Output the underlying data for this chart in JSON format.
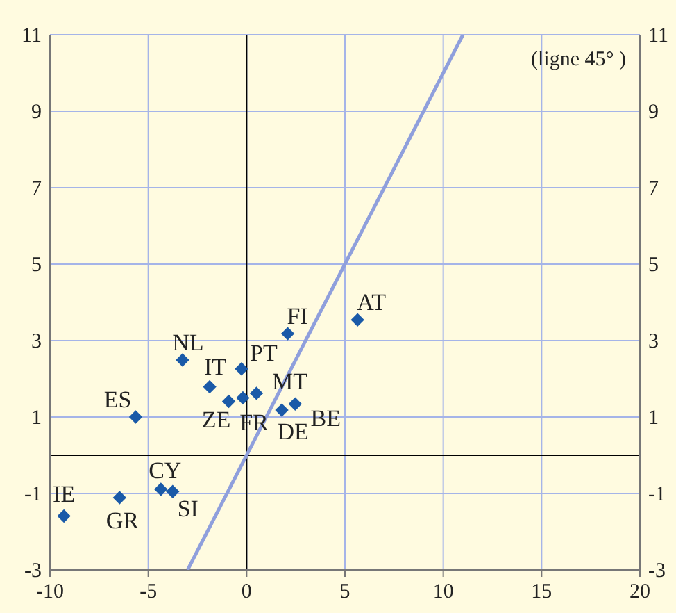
{
  "chart_data": {
    "type": "scatter",
    "xlim": [
      -10,
      20
    ],
    "xticks": [
      -10,
      -5,
      0,
      5,
      10,
      15,
      20
    ],
    "ylim": [
      -3,
      11
    ],
    "yticks": [
      -3,
      -1,
      1,
      3,
      5,
      7,
      9,
      11
    ],
    "y2lim": [
      -3,
      11
    ],
    "y2ticks": [
      -3,
      -1,
      1,
      3,
      5,
      7,
      9,
      11
    ],
    "grid": true,
    "marker": "diamond",
    "series": [
      {
        "color": "#1a5aa8",
        "x": [
          -9.29,
          -6.46,
          -4.36,
          -3.76,
          -5.64,
          -3.26,
          -1.88,
          -0.91,
          -0.19,
          -0.26,
          0.5,
          1.79,
          2.47,
          2.09,
          5.64
        ],
        "values": [
          -1.59,
          -1.11,
          -0.89,
          -0.95,
          1.0,
          2.49,
          1.79,
          1.41,
          1.5,
          2.26,
          1.62,
          1.18,
          1.34,
          3.18,
          3.54
        ]
      },
      {
        "type": "line",
        "color": "#8f9fdc",
        "x": [
          -3,
          11
        ],
        "values": [
          -3,
          11
        ],
        "marker": "none"
      }
    ],
    "annotations": [
      {
        "text": "IE",
        "x": -9.29,
        "y": -1.59
      },
      {
        "text": "GR",
        "x": -6.46,
        "y": -1.11
      },
      {
        "text": "CY",
        "x": -4.36,
        "y": -0.89
      },
      {
        "text": "SI",
        "x": -3.76,
        "y": -0.95
      },
      {
        "text": "ES",
        "x": -5.64,
        "y": 1.0
      },
      {
        "text": "NL",
        "x": -3.26,
        "y": 2.49
      },
      {
        "text": "IT",
        "x": -1.88,
        "y": 1.79
      },
      {
        "text": "ZE",
        "x": -0.91,
        "y": 1.41
      },
      {
        "text": "FR",
        "x": -0.19,
        "y": 1.5
      },
      {
        "text": "PT",
        "x": -0.26,
        "y": 2.26
      },
      {
        "text": "MT",
        "x": 0.5,
        "y": 1.62
      },
      {
        "text": "DE",
        "x": 1.79,
        "y": 1.18
      },
      {
        "text": "BE",
        "x": 2.47,
        "y": 1.34
      },
      {
        "text": "FI",
        "x": 2.09,
        "y": 3.18
      },
      {
        "text": "AT",
        "x": 5.64,
        "y": 3.54
      },
      "(ligne 45° )"
    ]
  }
}
